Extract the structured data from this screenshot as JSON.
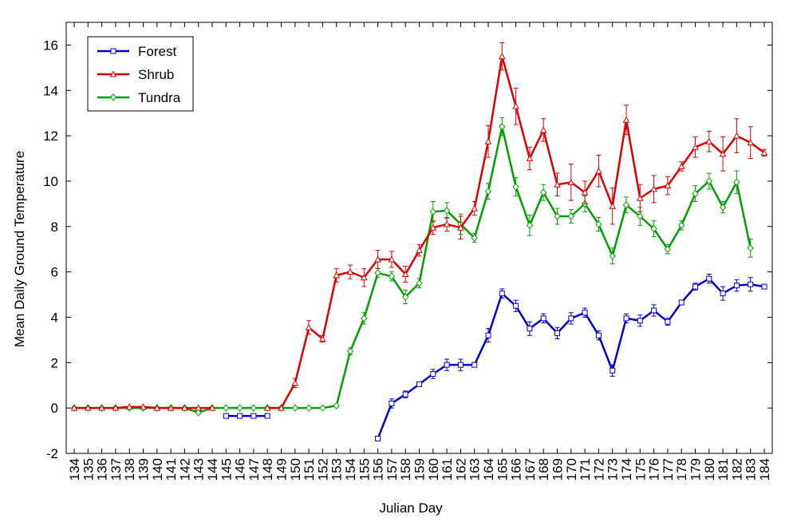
{
  "chart_data": {
    "type": "line",
    "title": "",
    "xlabel": "Julian Day",
    "ylabel": "Mean Daily Ground Temperature",
    "x_start": 134,
    "x_end": 184,
    "x_ticks": [
      "134",
      "135",
      "136",
      "137",
      "138",
      "139",
      "140",
      "141",
      "142",
      "143",
      "144",
      "145",
      "146",
      "147",
      "148",
      "149",
      "150",
      "151",
      "152",
      "153",
      "154",
      "155",
      "156",
      "157",
      "158",
      "159",
      "160",
      "161",
      "162",
      "163",
      "164",
      "165",
      "166",
      "167",
      "168",
      "169",
      "170",
      "171",
      "172",
      "173",
      "174",
      "175",
      "176",
      "177",
      "178",
      "179",
      "180",
      "181",
      "182",
      "183",
      "184"
    ],
    "ylim": [
      -2,
      17
    ],
    "y_ticks": [
      "-2",
      "0",
      "2",
      "4",
      "6",
      "8",
      "10",
      "12",
      "14",
      "16"
    ],
    "y_tick_values": [
      -2,
      0,
      2,
      4,
      6,
      8,
      10,
      12,
      14,
      16
    ],
    "legend_position": "top-left",
    "series": [
      {
        "name": "Forest",
        "color": "#0000cc",
        "marker": "square",
        "segments": [
          {
            "x": [
              145,
              146,
              147,
              148
            ],
            "y": [
              -0.35,
              -0.35,
              -0.35,
              -0.35
            ],
            "err": [
              0,
              0,
              0,
              0
            ]
          },
          {
            "x": [
              156,
              157,
              158,
              159,
              160,
              161,
              162,
              163,
              164,
              165,
              166,
              167,
              168,
              169,
              170,
              171,
              172,
              173,
              174,
              175,
              176,
              177,
              178,
              179,
              180,
              181,
              182,
              183,
              184
            ],
            "y": [
              -1.35,
              0.2,
              0.6,
              1.05,
              1.5,
              1.9,
              1.9,
              1.9,
              3.2,
              5.05,
              4.5,
              3.5,
              3.95,
              3.3,
              3.95,
              4.2,
              3.2,
              1.65,
              3.95,
              3.85,
              4.3,
              3.8,
              4.65,
              5.35,
              5.7,
              5.05,
              5.4,
              5.45,
              5.35
            ],
            "err": [
              0,
              0.2,
              0.15,
              0.1,
              0.2,
              0.25,
              0.25,
              0.1,
              0.3,
              0.2,
              0.25,
              0.3,
              0.2,
              0.25,
              0.25,
              0.2,
              0.2,
              0.25,
              0.2,
              0.25,
              0.25,
              0.15,
              0.1,
              0.15,
              0.2,
              0.3,
              0.25,
              0.3,
              0
            ]
          }
        ]
      },
      {
        "name": "Shrub",
        "color": "#dd0000",
        "marker": "triangle",
        "segments": [
          {
            "x": [
              134,
              135,
              136,
              137,
              138,
              139,
              140,
              141,
              142,
              143,
              144
            ],
            "y": [
              0,
              0,
              0,
              0,
              0.05,
              0.05,
              0,
              0,
              0,
              0,
              0
            ],
            "err": [
              0,
              0,
              0,
              0,
              0,
              0,
              0,
              0,
              0,
              0,
              0
            ]
          },
          {
            "x": [
              148,
              149,
              150,
              151,
              152,
              153,
              154,
              155,
              156,
              157,
              158,
              159,
              160,
              161,
              162,
              163,
              164,
              165,
              166,
              167,
              168,
              169,
              170,
              171,
              172,
              173,
              174,
              175,
              176,
              177,
              178,
              179,
              180,
              181,
              182,
              183,
              184
            ],
            "y": [
              0,
              0,
              1.1,
              3.55,
              3.05,
              5.85,
              6.0,
              5.75,
              6.55,
              6.55,
              5.9,
              6.95,
              7.95,
              8.1,
              7.95,
              8.8,
              11.75,
              15.5,
              13.3,
              11.0,
              12.25,
              9.85,
              9.95,
              9.5,
              10.45,
              8.9,
              12.7,
              9.25,
              9.65,
              9.8,
              10.65,
              11.5,
              11.75,
              11.2,
              12.0,
              11.7,
              11.25
            ],
            "err": [
              0,
              0,
              0.2,
              0.3,
              0.15,
              0.3,
              0.3,
              0.4,
              0.4,
              0.35,
              0.35,
              0.25,
              0.3,
              0.3,
              0.5,
              0.3,
              0.7,
              0.6,
              0.8,
              0.5,
              0.5,
              0.5,
              0.8,
              0.5,
              0.7,
              0.8,
              0.65,
              0.6,
              0.6,
              0.4,
              0.2,
              0.45,
              0.45,
              0.75,
              0.75,
              0.7,
              0.15
            ]
          }
        ]
      },
      {
        "name": "Tundra",
        "color": "#00a000",
        "marker": "diamond",
        "segments": [
          {
            "x": [
              134,
              135,
              136,
              137,
              138,
              139,
              140,
              141,
              142,
              143,
              144,
              145,
              146,
              147,
              148,
              149,
              150,
              151,
              152,
              153,
              154,
              155,
              156,
              157,
              158,
              159,
              160,
              161,
              162,
              163,
              164,
              165,
              166,
              167,
              168,
              169,
              170,
              171,
              172,
              173,
              174,
              175,
              176,
              177,
              178,
              179,
              180,
              181,
              182,
              183
            ],
            "y": [
              0,
              0,
              0,
              0,
              0,
              0,
              0,
              0,
              0,
              -0.2,
              0,
              0,
              0,
              0,
              0,
              0,
              0,
              0,
              0,
              0.1,
              2.5,
              3.95,
              5.95,
              5.8,
              4.9,
              5.5,
              8.65,
              8.7,
              8.1,
              7.5,
              9.55,
              12.4,
              9.75,
              8.05,
              9.5,
              8.45,
              8.45,
              9.0,
              8.1,
              6.7,
              8.95,
              8.45,
              7.9,
              7.0,
              8.05,
              9.45,
              10.0,
              8.85,
              9.95,
              7.05
            ],
            "err": [
              0,
              0,
              0,
              0,
              0,
              0,
              0,
              0,
              0,
              0,
              0,
              0,
              0,
              0,
              0,
              0,
              0,
              0,
              0,
              0,
              0.15,
              0.25,
              0.2,
              0.2,
              0.3,
              0.2,
              0.45,
              0.35,
              0.45,
              0.2,
              0.35,
              0.4,
              0.4,
              0.45,
              0.35,
              0.35,
              0.3,
              0.35,
              0.3,
              0.35,
              0.35,
              0.4,
              0.35,
              0.2,
              0.2,
              0.35,
              0.35,
              0.25,
              0.5,
              0.4
            ]
          }
        ]
      }
    ]
  }
}
